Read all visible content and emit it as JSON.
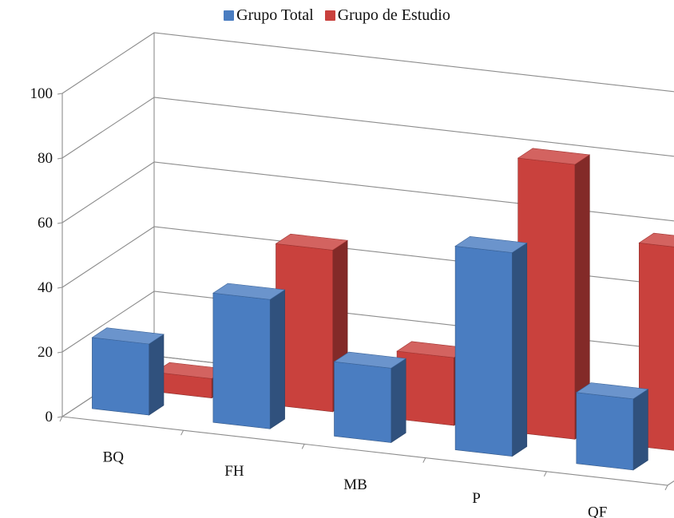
{
  "colors": {
    "series_1": "#4a7dc1",
    "series_2": "#c9413d",
    "grid": "#8c8c8c"
  },
  "legend": {
    "position": "top-center"
  },
  "chart_data": {
    "type": "bar",
    "style": "3d-clustered-column",
    "categories": [
      "BQ",
      "FH",
      "MB",
      "P",
      "QF"
    ],
    "series": [
      {
        "name": "Grupo Total",
        "values": [
          22,
          40,
          23,
          63,
          22
        ]
      },
      {
        "name": "Grupo de Estudio",
        "values": [
          6,
          50,
          21,
          85,
          63
        ]
      }
    ],
    "y_ticks": [
      0,
      20,
      40,
      60,
      80,
      100
    ],
    "ylim": [
      0,
      100
    ],
    "grid": true
  }
}
